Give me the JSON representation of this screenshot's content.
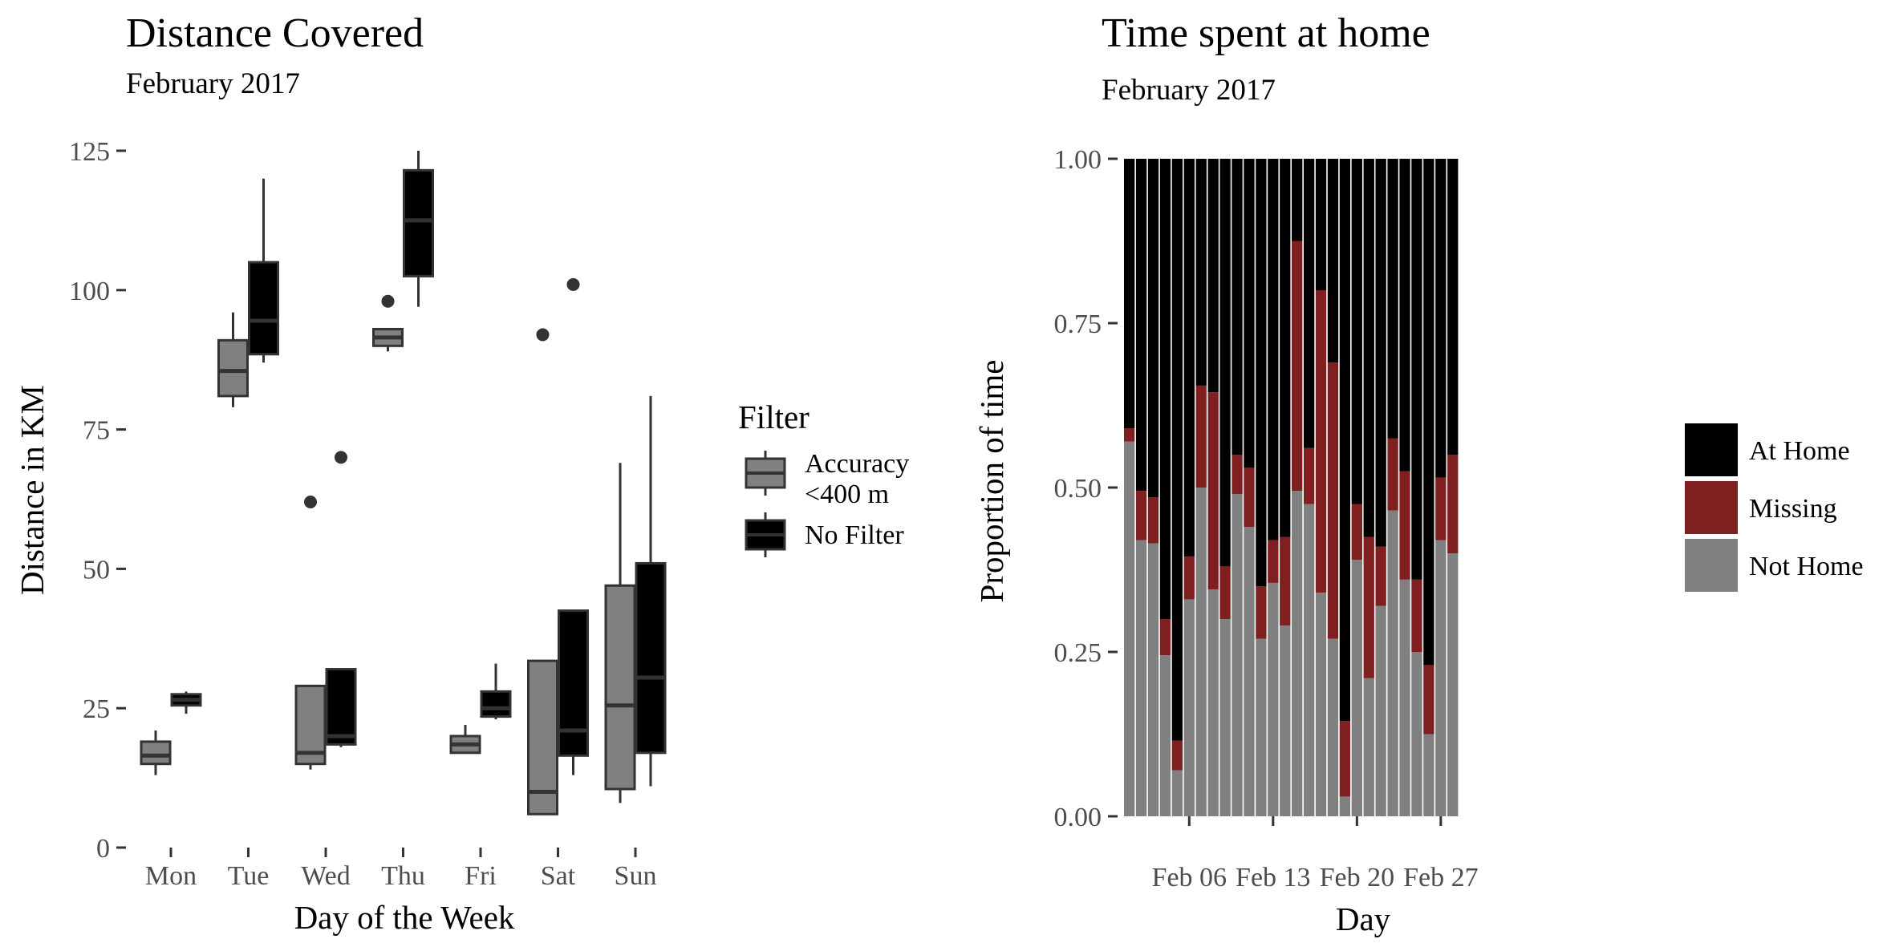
{
  "chart_data": [
    {
      "type": "boxplot",
      "title": "Distance Covered",
      "subtitle": "February 2017",
      "xlabel": "Day of the Week",
      "ylabel": "Distance in KM",
      "ylim": [
        0,
        125
      ],
      "yticks": [
        0,
        25,
        50,
        75,
        100,
        125
      ],
      "categories": [
        "Mon",
        "Tue",
        "Wed",
        "Thu",
        "Fri",
        "Sat",
        "Sun"
      ],
      "grid": false,
      "legend": {
        "title": "Filter",
        "position": "right",
        "entries": [
          {
            "label_lines": [
              "Accuracy",
              "<400 m"
            ],
            "color": "#808080"
          },
          {
            "label_lines": [
              "No Filter"
            ],
            "color": "#000000"
          }
        ]
      },
      "series": [
        {
          "color": "#808080",
          "boxes": [
            {
              "day": "Mon",
              "lo": 13,
              "q1": 15,
              "med": 16.5,
              "q3": 19,
              "hi": 21,
              "out": []
            },
            {
              "day": "Tue",
              "lo": 79,
              "q1": 81,
              "med": 85.5,
              "q3": 91,
              "hi": 96,
              "out": []
            },
            {
              "day": "Wed",
              "lo": 14,
              "q1": 15,
              "med": 17,
              "q3": 29,
              "hi": 29,
              "out": [
                62
              ]
            },
            {
              "day": "Thu",
              "lo": 89,
              "q1": 90,
              "med": 91.5,
              "q3": 93,
              "hi": 93,
              "out": [
                98
              ]
            },
            {
              "day": "Fri",
              "lo": 17,
              "q1": 17,
              "med": 18.5,
              "q3": 20,
              "hi": 22,
              "out": []
            },
            {
              "day": "Sat",
              "lo": 6,
              "q1": 6,
              "med": 10,
              "q3": 33.5,
              "hi": 33.5,
              "out": [
                92
              ]
            },
            {
              "day": "Sun",
              "lo": 8,
              "q1": 10.5,
              "med": 25.5,
              "q3": 47,
              "hi": 69,
              "out": []
            }
          ]
        },
        {
          "color": "#000000",
          "boxes": [
            {
              "day": "Mon",
              "lo": 24,
              "q1": 25.5,
              "med": 26.5,
              "q3": 27.5,
              "hi": 28,
              "out": []
            },
            {
              "day": "Tue",
              "lo": 87,
              "q1": 88.5,
              "med": 94.5,
              "q3": 105,
              "hi": 120,
              "out": []
            },
            {
              "day": "Wed",
              "lo": 18,
              "q1": 18.5,
              "med": 20,
              "q3": 32,
              "hi": 32,
              "out": [
                70
              ]
            },
            {
              "day": "Thu",
              "lo": 97,
              "q1": 102.5,
              "med": 112.5,
              "q3": 121.5,
              "hi": 125,
              "out": []
            },
            {
              "day": "Fri",
              "lo": 23,
              "q1": 23.5,
              "med": 25,
              "q3": 28,
              "hi": 33,
              "out": []
            },
            {
              "day": "Sat",
              "lo": 13,
              "q1": 16.5,
              "med": 21,
              "q3": 42.5,
              "hi": 42.5,
              "out": [
                101
              ]
            },
            {
              "day": "Sun",
              "lo": 11,
              "q1": 17,
              "med": 30.5,
              "q3": 51,
              "hi": 81,
              "out": []
            }
          ]
        }
      ]
    },
    {
      "type": "bar",
      "stacked": true,
      "title": "Time spent at home",
      "subtitle": "February 2017",
      "xlabel": "Day",
      "ylabel": "Proportion of time",
      "ylim": [
        0,
        1
      ],
      "yticks": [
        "0.00",
        "0.25",
        "0.50",
        "0.75",
        "1.00"
      ],
      "xticks": [
        {
          "label": "Feb 06",
          "day": 6
        },
        {
          "label": "Feb 13",
          "day": 13
        },
        {
          "label": "Feb 20",
          "day": 20
        },
        {
          "label": "Feb 27",
          "day": 27
        }
      ],
      "grid": false,
      "legend": {
        "position": "right",
        "entries": [
          {
            "label": "At Home",
            "color": "#000000"
          },
          {
            "label": "Missing",
            "color": "#7f1f1f"
          },
          {
            "label": "Not Home",
            "color": "#808080"
          }
        ]
      },
      "days": [
        1,
        2,
        3,
        4,
        5,
        6,
        7,
        8,
        9,
        10,
        11,
        12,
        13,
        14,
        15,
        16,
        17,
        18,
        19,
        20,
        21,
        22,
        23,
        24,
        25,
        26,
        27,
        28
      ],
      "series": [
        {
          "name": "Not Home",
          "color": "#808080",
          "values": [
            0.57,
            0.42,
            0.415,
            0.245,
            0.07,
            0.33,
            0.5,
            0.345,
            0.3,
            0.49,
            0.44,
            0.27,
            0.355,
            0.29,
            0.495,
            0.475,
            0.34,
            0.27,
            0.03,
            0.39,
            0.21,
            0.32,
            0.465,
            0.36,
            0.25,
            0.125,
            0.42,
            0.4
          ]
        },
        {
          "name": "Missing",
          "color": "#7f1f1f",
          "values": [
            0.02,
            0.075,
            0.07,
            0.055,
            0.045,
            0.065,
            0.155,
            0.3,
            0.08,
            0.06,
            0.09,
            0.08,
            0.065,
            0.135,
            0.38,
            0.085,
            0.46,
            0.42,
            0.115,
            0.085,
            0.215,
            0.09,
            0.11,
            0.165,
            0.11,
            0.105,
            0.095,
            0.15
          ]
        },
        {
          "name": "At Home",
          "color": "#000000",
          "values": [
            0.41,
            0.505,
            0.515,
            0.7,
            0.885,
            0.605,
            0.345,
            0.355,
            0.62,
            0.45,
            0.47,
            0.65,
            0.58,
            0.575,
            0.125,
            0.44,
            0.2,
            0.31,
            0.855,
            0.525,
            0.575,
            0.59,
            0.425,
            0.475,
            0.64,
            0.77,
            0.485,
            0.45
          ]
        }
      ]
    }
  ]
}
